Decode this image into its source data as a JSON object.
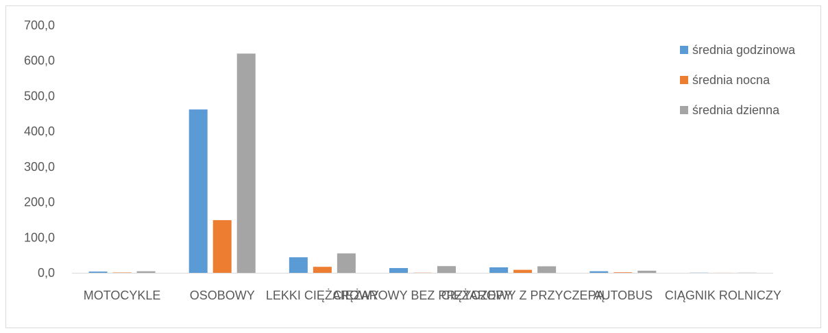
{
  "chart_data": {
    "type": "bar",
    "categories": [
      "MOTOCYKLE",
      "OSOBOWY",
      "LEKKI CIĘŻAROWY",
      "CIĘŻAROWY BEZ PRZYCZEPY",
      "CIĘŻAROWY Z PRZYCZEPĄ",
      "AUTOBUS",
      "CIĄGNIK ROLNICZY"
    ],
    "series": [
      {
        "name": "średnia godzinowa",
        "color": "#5b9bd5",
        "values": [
          3.5,
          462,
          44,
          13.5,
          15.5,
          4.5,
          0.5
        ]
      },
      {
        "name": "średnia nocna",
        "color": "#ed7d31",
        "values": [
          1,
          149,
          17,
          0.5,
          8.5,
          1.5,
          0.2
        ]
      },
      {
        "name": "średnia dzienna",
        "color": "#a5a5a5",
        "values": [
          4.5,
          620,
          55,
          19,
          18.5,
          6,
          0.5
        ]
      }
    ],
    "yticks": [
      "0,0",
      "100,0",
      "200,0",
      "300,0",
      "400,0",
      "500,0",
      "600,0",
      "700,0"
    ],
    "ylim": [
      0,
      700
    ],
    "grid": false,
    "legend_position": "right"
  }
}
